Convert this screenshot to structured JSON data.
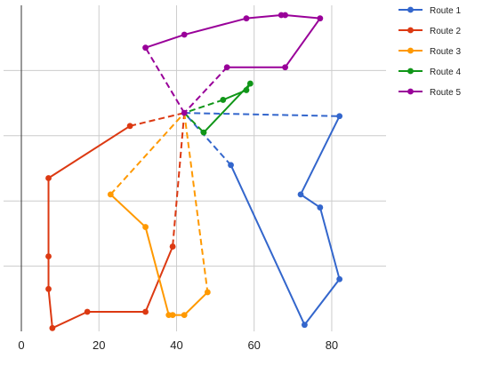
{
  "chart_data": {
    "type": "line",
    "title": "",
    "xlabel": "",
    "ylabel": "",
    "xlim": [
      0,
      94
    ],
    "ylim": [
      0,
      100
    ],
    "x_ticks": [
      0,
      20,
      40,
      60,
      80
    ],
    "y_gridlines": [
      20,
      40,
      60,
      80
    ],
    "grid": true,
    "legend_position": "right",
    "depot": [
      42,
      67
    ],
    "series": [
      {
        "name": "Route 1",
        "color": "#3366cc",
        "points": [
          [
            42,
            67
          ],
          [
            82,
            66
          ],
          [
            72,
            42
          ],
          [
            77,
            38
          ],
          [
            82,
            16
          ],
          [
            73,
            2
          ],
          [
            54,
            51
          ],
          [
            42,
            67
          ]
        ]
      },
      {
        "name": "Route 2",
        "color": "#dc3912",
        "points": [
          [
            42,
            67
          ],
          [
            39,
            26
          ],
          [
            32,
            6
          ],
          [
            17,
            6
          ],
          [
            8,
            1
          ],
          [
            7,
            13
          ],
          [
            7,
            23
          ],
          [
            7,
            47
          ],
          [
            28,
            63
          ],
          [
            42,
            67
          ]
        ]
      },
      {
        "name": "Route 3",
        "color": "#ff9900",
        "points": [
          [
            42,
            67
          ],
          [
            48,
            12
          ],
          [
            42,
            5
          ],
          [
            39,
            5
          ],
          [
            38,
            5
          ],
          [
            32,
            32
          ],
          [
            23,
            42
          ],
          [
            42,
            67
          ]
        ]
      },
      {
        "name": "Route 4",
        "color": "#109618",
        "points": [
          [
            42,
            67
          ],
          [
            47,
            61
          ],
          [
            59,
            76
          ],
          [
            58,
            74
          ],
          [
            52,
            71
          ],
          [
            42,
            67
          ]
        ]
      },
      {
        "name": "Route 5",
        "color": "#990099",
        "points": [
          [
            42,
            67
          ],
          [
            32,
            87
          ],
          [
            42,
            91
          ],
          [
            58,
            96
          ],
          [
            67,
            97
          ],
          [
            68,
            97
          ],
          [
            77,
            96
          ],
          [
            68,
            81
          ],
          [
            53,
            81
          ],
          [
            42,
            67
          ]
        ]
      }
    ]
  }
}
